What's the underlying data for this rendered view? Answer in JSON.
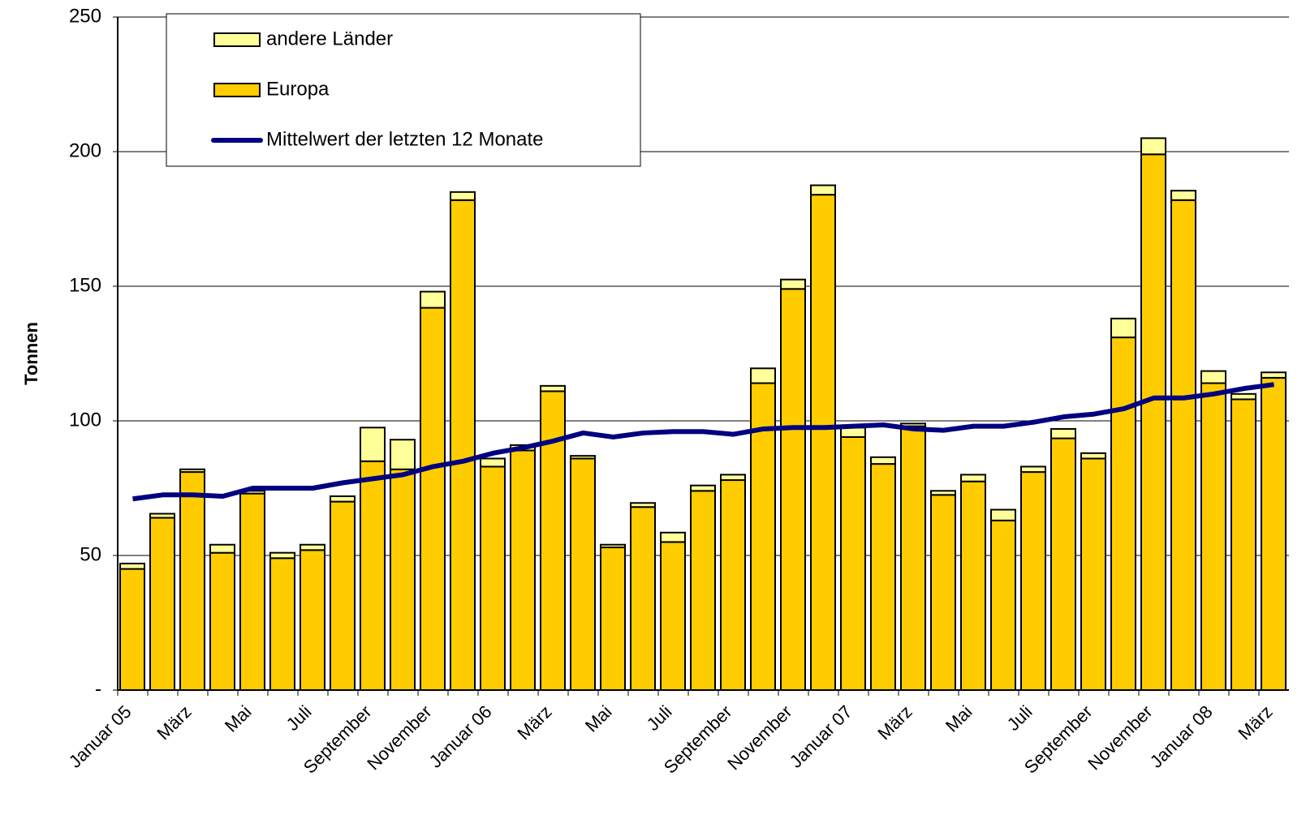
{
  "chart_data": {
    "type": "bar",
    "y_label": "Tonnen",
    "categories": [
      "Januar 05",
      null,
      "März",
      null,
      "Mai",
      null,
      "Juli",
      null,
      "September",
      null,
      "November",
      null,
      "Januar 06",
      null,
      "März",
      null,
      "Mai",
      null,
      "Juli",
      null,
      "September",
      null,
      "November",
      null,
      "Januar 07",
      null,
      "März",
      null,
      "Mai",
      null,
      "Juli",
      null,
      "September",
      null,
      "November",
      null,
      "Januar 08",
      null,
      "März"
    ],
    "series": [
      {
        "name": "Europa",
        "color": "#ffcc00",
        "values": [
          45,
          64,
          81,
          51,
          73,
          49,
          52,
          70,
          85,
          82,
          142,
          182,
          83,
          89,
          111,
          86,
          53,
          68,
          55,
          74,
          78,
          114,
          149,
          184,
          94,
          84,
          98,
          72.5,
          77.5,
          63,
          81,
          93.5,
          86,
          131,
          199,
          182,
          114,
          108,
          116
        ]
      },
      {
        "name": "andere Länder",
        "color": "#ffff99",
        "values": [
          2,
          1.5,
          1,
          3,
          1,
          2,
          2,
          2,
          12.5,
          11,
          6,
          3,
          3,
          2,
          2,
          1,
          1,
          1.5,
          3.5,
          2,
          2,
          5.5,
          3.5,
          3.5,
          3.5,
          2.5,
          1,
          1.5,
          2.5,
          4,
          2,
          3.5,
          2,
          7,
          6,
          3.5,
          4.5,
          2,
          2
        ]
      },
      {
        "name": "Mittelwert der letzten 12 Monate",
        "type": "line",
        "color": "#000080",
        "values": [
          71,
          72.5,
          72.5,
          72,
          75,
          75,
          75,
          77,
          78.5,
          80,
          83,
          85,
          88,
          90,
          92.5,
          95.5,
          94,
          95.5,
          96,
          96,
          95,
          97,
          97.5,
          97.5,
          98,
          98.5,
          97,
          96.5,
          98,
          98,
          99.5,
          101.5,
          102.5,
          104.5,
          108.5,
          108.5,
          110,
          112,
          113.5
        ]
      }
    ],
    "ylim": [
      0,
      250
    ],
    "yticks": [
      {
        "value": 0,
        "label": "-"
      },
      50,
      100,
      150,
      200,
      250
    ],
    "grid": true,
    "legend": "top-left"
  }
}
